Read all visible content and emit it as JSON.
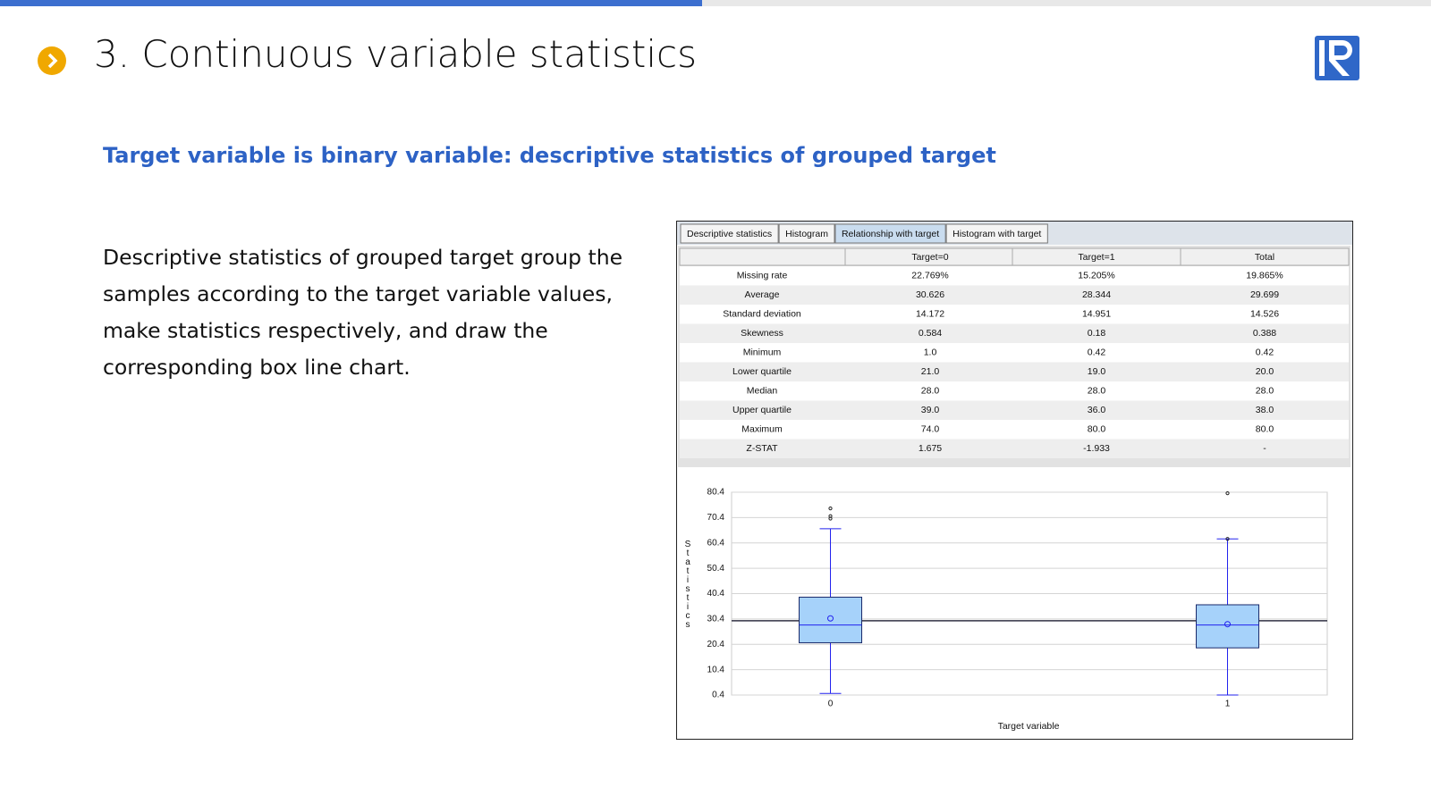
{
  "header": {
    "title": "3. Continuous variable statistics"
  },
  "subtitle": "Target variable is binary variable: descriptive statistics of grouped target",
  "paragraph": "Descriptive statistics of grouped target group the samples according to the target variable values, make statistics respectively, and draw the corresponding box line chart.",
  "tabs": {
    "items": [
      "Descriptive statistics",
      "Histogram",
      "Relationship with target",
      "Histogram with target"
    ],
    "active": 2
  },
  "table": {
    "columns": [
      "Target=0",
      "Target=1",
      "Total"
    ],
    "rows": [
      [
        "Missing rate",
        "22.769%",
        "15.205%",
        "19.865%"
      ],
      [
        "Average",
        "30.626",
        "28.344",
        "29.699"
      ],
      [
        "Standard deviation",
        "14.172",
        "14.951",
        "14.526"
      ],
      [
        "Skewness",
        "0.584",
        "0.18",
        "0.388"
      ],
      [
        "Minimum",
        "1.0",
        "0.42",
        "0.42"
      ],
      [
        "Lower quartile",
        "21.0",
        "19.0",
        "20.0"
      ],
      [
        "Median",
        "28.0",
        "28.0",
        "28.0"
      ],
      [
        "Upper quartile",
        "39.0",
        "36.0",
        "38.0"
      ],
      [
        "Maximum",
        "74.0",
        "80.0",
        "80.0"
      ],
      [
        "Z-STAT",
        "1.675",
        "-1.933",
        "-"
      ]
    ]
  },
  "chart_data": {
    "type": "box",
    "x_label": "Target variable",
    "y_label": "Statistics",
    "categories": [
      "0",
      "1"
    ],
    "boxes": [
      {
        "whisker_low": 1.0,
        "q1": 21,
        "median": 28,
        "q3": 39,
        "whisker_high": 66,
        "mean": 30.626,
        "outliers": [
          70,
          71,
          74
        ]
      },
      {
        "whisker_low": 0.42,
        "q1": 19,
        "median": 28,
        "q3": 36,
        "whisker_high": 62,
        "mean": 28.344,
        "outliers": [
          62,
          80
        ]
      }
    ],
    "mean_line": 29.699,
    "ylim": [
      0.4,
      80.4
    ],
    "yticks": [
      0.4,
      10.4,
      20.4,
      30.4,
      40.4,
      50.4,
      60.4,
      70.4,
      80.4
    ],
    "grid": true,
    "box_color": "#a6d2fa",
    "line_color": "#2222ee"
  }
}
